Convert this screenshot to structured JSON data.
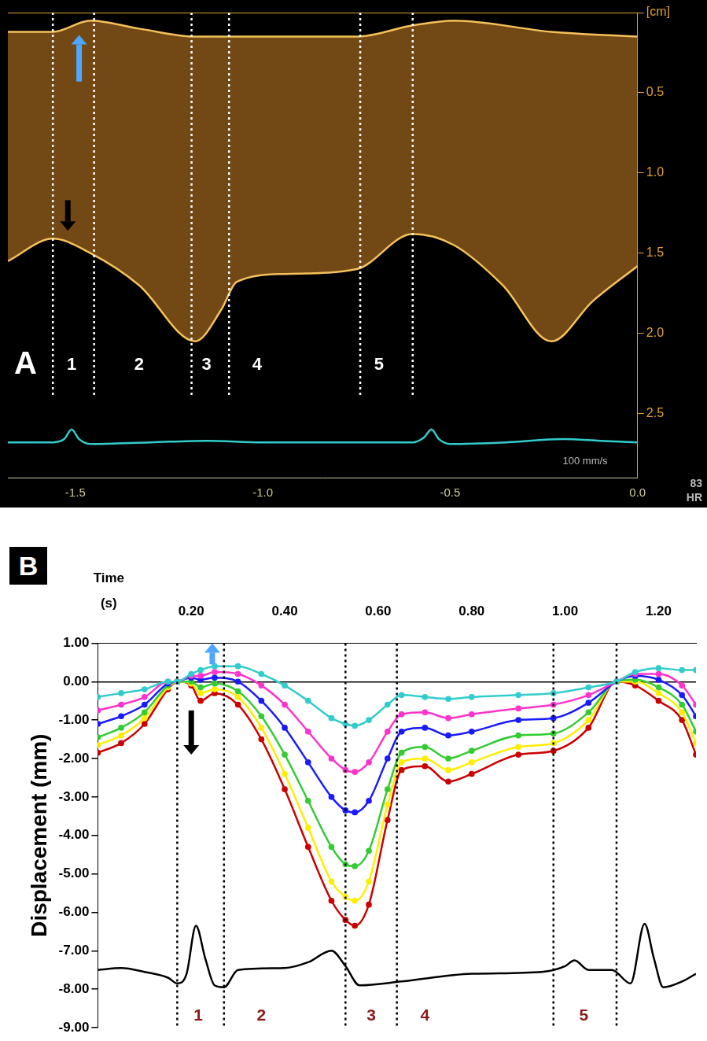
{
  "chart_data": [
    {
      "type": "line",
      "panel_label": "A",
      "xlim": [
        -1.68,
        0
      ],
      "xticks": [
        -1.5,
        {
          "value": -1,
          "label": "-1.0"
        },
        -0.5,
        {
          "value": 0,
          "label": "0.0"
        }
      ],
      "ylim": [
        0,
        2.9
      ],
      "yticks": [
        {
          "value": 0,
          "label": "[cm]"
        },
        0.5,
        {
          "value": 1,
          "label": "1.0"
        },
        1.5,
        {
          "value": 2,
          "label": "2.0"
        },
        2.5
      ],
      "grid": false,
      "series": [
        {
          "color": "#f5c15a",
          "x": [
            -1.68,
            -1.56,
            -1.46,
            -1.33,
            -1.18,
            -1.07,
            -0.75,
            -0.6,
            -0.49,
            -0.23,
            0
          ],
          "values": [
            0.12,
            0.12,
            0.05,
            0.1,
            0.15,
            0.15,
            0.15,
            0.08,
            0.05,
            0.12,
            0.15
          ]
        },
        {
          "type": "area",
          "color": "#f5c15a",
          "x": [
            -1.68,
            -1.56,
            -1.46,
            -1.33,
            -1.18,
            -1.11,
            -1.07,
            -0.94,
            -0.75,
            -0.6,
            -0.49,
            -0.36,
            -0.23,
            -0.12,
            0
          ],
          "values": [
            1.55,
            1.41,
            1.5,
            1.7,
            2.05,
            1.85,
            1.68,
            1.63,
            1.6,
            1.38,
            1.45,
            1.7,
            2.05,
            1.8,
            1.58
          ]
        },
        {
          "color": "#33cccc",
          "x": [
            -1.68,
            -1.56,
            -1.53,
            -1.51,
            -1.49,
            -1.46,
            -1.3,
            -1.15,
            -1.0,
            -0.75,
            -0.6,
            -0.57,
            -0.55,
            -0.53,
            -0.5,
            -0.35,
            -0.2,
            -0.1,
            0
          ],
          "values": [
            2.68,
            2.68,
            2.66,
            2.6,
            2.66,
            2.69,
            2.68,
            2.67,
            2.68,
            2.68,
            2.68,
            2.65,
            2.6,
            2.66,
            2.69,
            2.68,
            2.66,
            2.67,
            2.68
          ]
        }
      ],
      "phase_lines": {
        "x": [
          -1.56,
          -1.45,
          -1.19,
          -1.09,
          -0.74,
          -0.6
        ],
        "y_from": 0,
        "y_to": 2.4,
        "color": "#ffffff"
      },
      "phase_labels": {
        "color": "#ffffff",
        "y": 2.2,
        "items": [
          {
            "text": "1",
            "x": -1.51
          },
          {
            "text": "2",
            "x": -1.33
          },
          {
            "text": "3",
            "x": -1.15
          },
          {
            "text": "4",
            "x": -1.015
          },
          {
            "text": "5",
            "x": -0.69
          }
        ]
      },
      "arrows": [
        {
          "x": -1.49,
          "y_from": 0.43,
          "y_to": 0.14,
          "color": "#4da6ff"
        },
        {
          "x": -1.52,
          "y_from": 1.17,
          "y_to": 1.36,
          "color": "#000000"
        }
      ],
      "texts": [
        {
          "text": "100 mm/s",
          "x": -0.14,
          "y": 2.8
        }
      ],
      "side_texts": [
        "83",
        "HR"
      ]
    },
    {
      "type": "line",
      "panel_label": "B",
      "x_label": "Time (s)",
      "y_label": "Displacement (mm)",
      "xlim": [
        0,
        1.28
      ],
      "xticks": [
        {
          "value": 0.2,
          "label": "0.20"
        },
        {
          "value": 0.4,
          "label": "0.40"
        },
        {
          "value": 0.6,
          "label": "0.60"
        },
        {
          "value": 0.8,
          "label": "0.80"
        },
        {
          "value": 1,
          "label": "1.00"
        },
        {
          "value": 1.2,
          "label": "1.20"
        }
      ],
      "ylim": [
        -9,
        1
      ],
      "yticks": [
        {
          "value": 1,
          "label": "1.00"
        },
        {
          "value": 0,
          "label": "0.00"
        },
        {
          "value": -1,
          "label": "-1.00"
        },
        {
          "value": -2,
          "label": "-2.00"
        },
        {
          "value": -3,
          "label": "-3.00"
        },
        {
          "value": -4,
          "label": "-4.00"
        },
        {
          "value": -5,
          "label": "-5.00"
        },
        {
          "value": -6,
          "label": "-6.00"
        },
        {
          "value": -7,
          "label": "-7.00"
        },
        {
          "value": -8,
          "label": "-8.00"
        },
        {
          "value": -9,
          "label": "-9.00"
        }
      ],
      "grid": false,
      "x": [
        0,
        0.05,
        0.1,
        0.15,
        0.17,
        0.2,
        0.22,
        0.25,
        0.3,
        0.35,
        0.4,
        0.45,
        0.5,
        0.53,
        0.55,
        0.58,
        0.62,
        0.65,
        0.7,
        0.75,
        0.8,
        0.9,
        0.975,
        1.05,
        1.11,
        1.15,
        1.2,
        1.25,
        1.28
      ],
      "series": [
        {
          "color": "#33cccc",
          "marker": "circle",
          "values": [
            -0.4,
            -0.3,
            -0.2,
            0,
            0,
            0.2,
            0.3,
            0.4,
            0.4,
            0.2,
            -0.1,
            -0.5,
            -0.95,
            -1.1,
            -1.15,
            -1.0,
            -0.6,
            -0.35,
            -0.4,
            -0.45,
            -0.4,
            -0.35,
            -0.3,
            -0.15,
            0,
            0.25,
            0.35,
            0.3,
            0.3
          ]
        },
        {
          "color": "#ff33cc",
          "marker": "circle",
          "values": [
            -0.75,
            -0.6,
            -0.4,
            0,
            0,
            0.15,
            0.15,
            0.25,
            0.2,
            -0.1,
            -0.6,
            -1.3,
            -2.0,
            -2.3,
            -2.35,
            -2.1,
            -1.3,
            -0.85,
            -0.8,
            -0.95,
            -0.85,
            -0.7,
            -0.6,
            -0.35,
            0,
            0.2,
            0.2,
            -0.1,
            -0.6
          ]
        },
        {
          "color": "#1a1aff",
          "marker": "circle",
          "values": [
            -1.1,
            -0.9,
            -0.6,
            -0.05,
            0,
            0.1,
            0.05,
            0.1,
            0,
            -0.5,
            -1.2,
            -2.1,
            -3.0,
            -3.35,
            -3.4,
            -3.1,
            -2.0,
            -1.3,
            -1.2,
            -1.4,
            -1.3,
            -1.0,
            -0.95,
            -0.55,
            0,
            0.15,
            0.05,
            -0.35,
            -0.9
          ]
        },
        {
          "color": "#33cc33",
          "marker": "circle",
          "values": [
            -1.45,
            -1.2,
            -0.8,
            -0.1,
            0,
            0,
            -0.15,
            -0.05,
            -0.25,
            -0.9,
            -1.9,
            -3.1,
            -4.3,
            -4.75,
            -4.8,
            -4.4,
            -2.8,
            -1.85,
            -1.7,
            -2.0,
            -1.8,
            -1.4,
            -1.35,
            -0.8,
            0,
            0.05,
            -0.15,
            -0.6,
            -1.3
          ]
        },
        {
          "color": "#ffee00",
          "marker": "circle",
          "values": [
            -1.65,
            -1.4,
            -0.95,
            -0.15,
            0,
            -0.05,
            -0.3,
            -0.2,
            -0.4,
            -1.2,
            -2.4,
            -3.8,
            -5.2,
            -5.6,
            -5.7,
            -5.2,
            -3.2,
            -2.1,
            -2.0,
            -2.3,
            -2.1,
            -1.7,
            -1.6,
            -1.0,
            0,
            0,
            -0.3,
            -0.8,
            -1.6
          ]
        },
        {
          "color": "#cc0000",
          "marker": "circle",
          "values": [
            -1.85,
            -1.6,
            -1.1,
            -0.2,
            0,
            -0.1,
            -0.5,
            -0.3,
            -0.6,
            -1.5,
            -2.8,
            -4.3,
            -5.7,
            -6.2,
            -6.35,
            -5.8,
            -3.6,
            -2.3,
            -2.2,
            -2.6,
            -2.4,
            -1.9,
            -1.8,
            -1.2,
            0,
            -0.1,
            -0.5,
            -1.0,
            -1.9
          ]
        },
        {
          "color": "#000000",
          "x": [
            0,
            0.05,
            0.1,
            0.15,
            0.17,
            0.19,
            0.21,
            0.23,
            0.25,
            0.27,
            0.3,
            0.4,
            0.45,
            0.5,
            0.53,
            0.56,
            0.65,
            0.8,
            0.95,
            1.0,
            1.02,
            1.05,
            1.1,
            1.14,
            1.17,
            1.19,
            1.21,
            1.25,
            1.28
          ],
          "values": [
            -7.5,
            -7.45,
            -7.55,
            -7.7,
            -7.85,
            -7.6,
            -6.35,
            -7.2,
            -7.9,
            -7.95,
            -7.5,
            -7.45,
            -7.3,
            -7.0,
            -7.4,
            -7.9,
            -7.8,
            -7.6,
            -7.55,
            -7.4,
            -7.25,
            -7.5,
            -7.5,
            -7.85,
            -6.3,
            -7.2,
            -7.95,
            -7.8,
            -7.6
          ]
        }
      ],
      "phase_lines": {
        "x": [
          0.17,
          0.27,
          0.53,
          0.64,
          0.975,
          1.11
        ],
        "y_from": 1,
        "y_to": -9,
        "color": "#000000"
      },
      "phase_labels": {
        "color": "#8b1a1a",
        "y": -8.7,
        "items": [
          {
            "text": "1",
            "x": 0.215
          },
          {
            "text": "2",
            "x": 0.35
          },
          {
            "text": "3",
            "x": 0.585
          },
          {
            "text": "4",
            "x": 0.7
          },
          {
            "text": "5",
            "x": 1.04
          }
        ]
      },
      "arrows": [
        {
          "x": 0.245,
          "y_from": 0.45,
          "y_to": 1.0,
          "color": "#4da6ff"
        },
        {
          "x": 0.2,
          "y_from": -0.75,
          "y_to": -1.9,
          "color": "#000000"
        }
      ]
    }
  ]
}
